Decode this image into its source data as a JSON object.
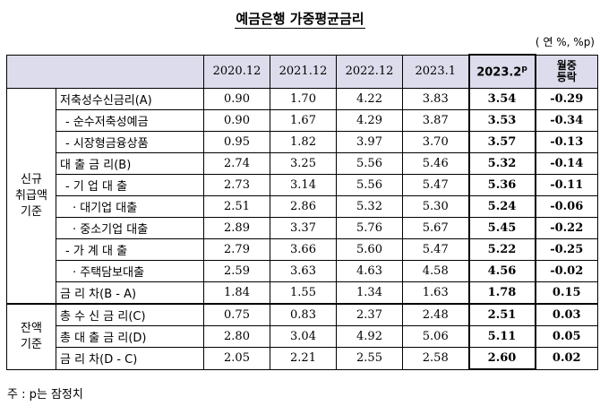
{
  "title": "예금은행 가중평균금리",
  "unit": "( 연 %, %p)",
  "headers": {
    "cols": [
      "2020.12",
      "2021.12",
      "2022.12",
      "2023.1"
    ],
    "current_main": "2023.2",
    "current_sup": "p",
    "change_line1": "월중",
    "change_line2": "등락"
  },
  "groups": {
    "new_line1": "신규",
    "new_line2": "취급액",
    "new_line3": "기준",
    "bal_line1": "잔액",
    "bal_line2": "기준"
  },
  "rows": [
    {
      "label": "저축성수신금리(A)",
      "v": [
        "0.90",
        "1.70",
        "4.22",
        "3.83"
      ],
      "cur": "3.54",
      "chg": "-0.29"
    },
    {
      "label": "- 순수저축성예금",
      "v": [
        "0.90",
        "1.67",
        "4.29",
        "3.87"
      ],
      "cur": "3.53",
      "chg": "-0.34"
    },
    {
      "label": "- 시장형금융상품",
      "v": [
        "0.95",
        "1.82",
        "3.97",
        "3.70"
      ],
      "cur": "3.57",
      "chg": "-0.13"
    },
    {
      "label": "대 출 금 리(B)",
      "v": [
        "2.74",
        "3.25",
        "5.56",
        "5.46"
      ],
      "cur": "5.32",
      "chg": "-0.14"
    },
    {
      "label": "- 기 업 대 출",
      "v": [
        "2.73",
        "3.14",
        "5.56",
        "5.47"
      ],
      "cur": "5.36",
      "chg": "-0.11"
    },
    {
      "label": "· 대기업 대출",
      "v": [
        "2.51",
        "2.86",
        "5.32",
        "5.30"
      ],
      "cur": "5.24",
      "chg": "-0.06"
    },
    {
      "label": "· 중소기업 대출",
      "v": [
        "2.89",
        "3.37",
        "5.76",
        "5.67"
      ],
      "cur": "5.45",
      "chg": "-0.22"
    },
    {
      "label": "- 가 계 대 출",
      "v": [
        "2.79",
        "3.66",
        "5.60",
        "5.47"
      ],
      "cur": "5.22",
      "chg": "-0.25"
    },
    {
      "label": "· 주택담보대출",
      "v": [
        "2.59",
        "3.63",
        "4.63",
        "4.58"
      ],
      "cur": "4.56",
      "chg": "-0.02"
    },
    {
      "label": "금 리 차(B - A)",
      "v": [
        "1.84",
        "1.55",
        "1.34",
        "1.63"
      ],
      "cur": "1.78",
      "chg": "0.15"
    },
    {
      "label": "총 수 신 금 리(C)",
      "v": [
        "0.75",
        "0.83",
        "2.37",
        "2.48"
      ],
      "cur": "2.51",
      "chg": "0.03"
    },
    {
      "label": "총 대 출 금 리(D)",
      "v": [
        "2.80",
        "3.04",
        "4.92",
        "5.06"
      ],
      "cur": "5.11",
      "chg": "0.05"
    },
    {
      "label": "금 리 차(D - C)",
      "v": [
        "2.05",
        "2.21",
        "2.55",
        "2.58"
      ],
      "cur": "2.60",
      "chg": "0.02"
    }
  ],
  "note": "주 : p는 잠정치"
}
